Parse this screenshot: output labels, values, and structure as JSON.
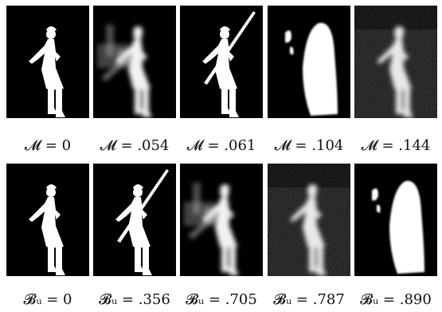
{
  "figure": {
    "row1": {
      "captions": [
        "𝓜 = 0",
        "𝓜 = .054",
        "𝓜 = .061",
        "𝓜 = .104",
        "𝓜 = .144"
      ],
      "panels": [
        "gt-silhouette",
        "blurry-crowd",
        "silhouette-with-spear",
        "smooth-blob",
        "noisy-silhouette"
      ]
    },
    "row2": {
      "captions": [
        "𝓑ᵤ = 0",
        "𝓑ᵤ = .356",
        "𝓑ᵤ = .705",
        "𝓑ᵤ = .787",
        "𝓑ᵤ = .890"
      ],
      "panels": [
        "gt-silhouette",
        "silhouette-with-spear",
        "blurry-crowd",
        "noisy-silhouette",
        "smooth-blob"
      ]
    }
  }
}
